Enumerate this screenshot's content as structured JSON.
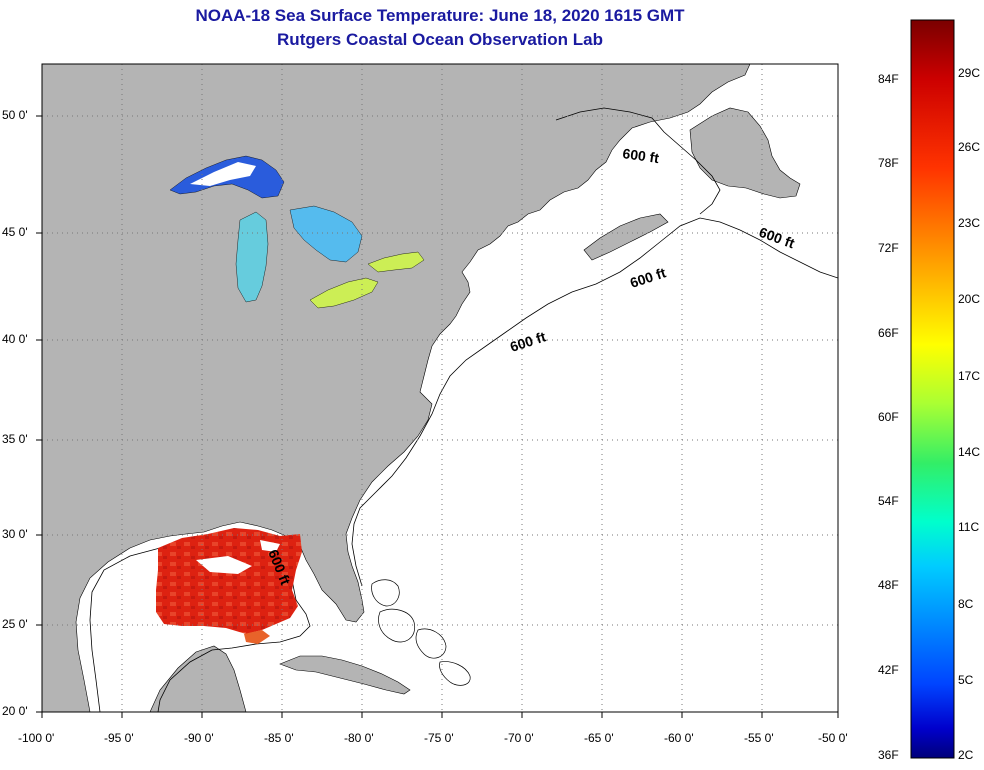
{
  "title": "NOAA-18 Sea Surface Temperature:  June 18, 2020 1615 GMT",
  "subtitle": "Rutgers Coastal Ocean Observation Lab",
  "y_axis_labels": [
    "50 0'",
    "45 0'",
    "40 0'",
    "35 0'",
    "30 0'",
    "25 0'",
    "20 0'"
  ],
  "x_axis_labels": [
    "-100 0'",
    "-95 0'",
    "-90 0'",
    "-85 0'",
    "-80 0'",
    "-75 0'",
    "-70 0'",
    "-65 0'",
    "-60 0'",
    "-55 0'",
    "-50 0'"
  ],
  "contour_labels": [
    "600 ft",
    "600 ft",
    "600 ft",
    "600 ft",
    "600 ft"
  ],
  "colorbar": {
    "fahrenheit_labels": [
      "84F",
      "78F",
      "72F",
      "66F",
      "60F",
      "54F",
      "48F",
      "42F",
      "36F"
    ],
    "celsius_labels": [
      "29C",
      "26C",
      "23C",
      "20C",
      "17C",
      "14C",
      "11C",
      "8C",
      "5C",
      "2C"
    ],
    "colors": [
      "#7a0000",
      "#cc0000",
      "#ff3300",
      "#ff8800",
      "#ffcc00",
      "#ffff00",
      "#aaff33",
      "#33ee66",
      "#00ffcc",
      "#00ccff",
      "#0088ff",
      "#0044ff",
      "#0000cc",
      "#00007a"
    ]
  },
  "colors": {
    "land": "#b4b4b4",
    "ocean": "#ffffff",
    "title": "#1a1aa0",
    "gulf_sst": "#dd2211",
    "lakes_sst": "#66ccdd"
  }
}
